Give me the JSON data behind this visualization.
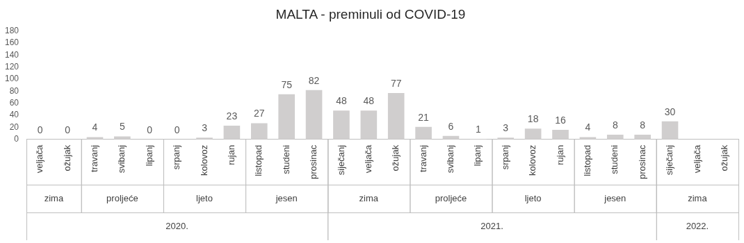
{
  "chart_data": {
    "type": "bar",
    "title": "MALTA - preminuli od COVID-19",
    "categories": [
      "veljača",
      "ožujak",
      "travanj",
      "svibanj",
      "lipanj",
      "srpanj",
      "kolovoz",
      "rujan",
      "listopad",
      "studeni",
      "prosinac",
      "siječanj",
      "veljača",
      "ožujak",
      "travanj",
      "svibanj",
      "lipanj",
      "srpanj",
      "kolovoz",
      "rujan",
      "listopad",
      "studeni",
      "prosinac",
      "siječanj",
      "veljača",
      "ožujak"
    ],
    "values": [
      0,
      0,
      4,
      5,
      0,
      0,
      3,
      23,
      27,
      75,
      82,
      48,
      48,
      77,
      21,
      6,
      1,
      3,
      18,
      16,
      4,
      8,
      8,
      30,
      null,
      null
    ],
    "color": "#d0cece",
    "ylim": [
      0,
      180
    ],
    "yticks": [
      0,
      20,
      40,
      60,
      80,
      100,
      120,
      140,
      160,
      180
    ],
    "grid": false,
    "legend": false,
    "data_labels": true,
    "annotations": [
      "zima",
      "proljeće",
      "ljeto",
      "jesen",
      "zima",
      "proljeće",
      "ljeto",
      "jesen",
      "zima",
      "2020.",
      "2021.",
      "2022."
    ]
  }
}
